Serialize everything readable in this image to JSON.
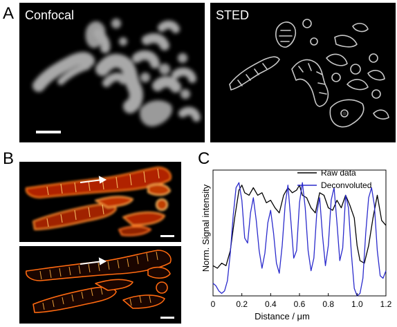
{
  "panels": {
    "a": {
      "letter": "A",
      "left_label": "Confocal",
      "right_label": "STED"
    },
    "b": {
      "letter": "B"
    },
    "c": {
      "letter": "C"
    }
  },
  "chart_data": {
    "type": "line",
    "xlabel": "Distance / μm",
    "ylabel": "Norm. Signal intensity",
    "xlim": [
      0,
      1.2
    ],
    "xticks": [
      "0",
      "0.2",
      "0.4",
      "0.6",
      "0.8",
      "1.0",
      "1.2"
    ],
    "ylim": [
      0,
      1
    ],
    "series": [
      {
        "name": "Raw data",
        "color": "#000000",
        "x": [
          0,
          0.03,
          0.06,
          0.09,
          0.12,
          0.15,
          0.18,
          0.2,
          0.22,
          0.25,
          0.28,
          0.31,
          0.34,
          0.37,
          0.4,
          0.43,
          0.46,
          0.49,
          0.52,
          0.55,
          0.58,
          0.6,
          0.62,
          0.65,
          0.68,
          0.71,
          0.74,
          0.77,
          0.8,
          0.83,
          0.86,
          0.89,
          0.92,
          0.95,
          0.98,
          1.0,
          1.02,
          1.05,
          1.08,
          1.11,
          1.14,
          1.17,
          1.2
        ],
        "y": [
          0.24,
          0.22,
          0.26,
          0.24,
          0.36,
          0.62,
          0.84,
          0.88,
          0.82,
          0.8,
          0.86,
          0.8,
          0.82,
          0.74,
          0.76,
          0.7,
          0.66,
          0.8,
          0.86,
          0.82,
          0.84,
          0.88,
          0.8,
          0.78,
          0.7,
          0.66,
          0.82,
          0.8,
          0.7,
          0.68,
          0.76,
          0.7,
          0.8,
          0.72,
          0.62,
          0.4,
          0.28,
          0.26,
          0.4,
          0.62,
          0.8,
          0.6,
          0.56
        ]
      },
      {
        "name": "Deconvoluted",
        "color": "#2a2acc",
        "x": [
          0,
          0.02,
          0.04,
          0.06,
          0.08,
          0.1,
          0.12,
          0.14,
          0.16,
          0.18,
          0.2,
          0.22,
          0.24,
          0.26,
          0.28,
          0.3,
          0.32,
          0.34,
          0.36,
          0.38,
          0.4,
          0.42,
          0.44,
          0.46,
          0.48,
          0.5,
          0.52,
          0.54,
          0.56,
          0.58,
          0.6,
          0.62,
          0.64,
          0.66,
          0.68,
          0.7,
          0.72,
          0.74,
          0.76,
          0.78,
          0.8,
          0.82,
          0.84,
          0.86,
          0.88,
          0.9,
          0.92,
          0.94,
          0.96,
          0.98,
          1.0,
          1.02,
          1.04,
          1.06,
          1.08,
          1.1,
          1.12,
          1.14,
          1.16,
          1.18,
          1.2
        ],
        "y": [
          0.1,
          0.08,
          0.04,
          0.02,
          0.04,
          0.12,
          0.34,
          0.64,
          0.86,
          0.9,
          0.76,
          0.46,
          0.42,
          0.66,
          0.78,
          0.6,
          0.36,
          0.22,
          0.34,
          0.58,
          0.68,
          0.5,
          0.26,
          0.18,
          0.4,
          0.72,
          0.88,
          0.6,
          0.3,
          0.36,
          0.74,
          0.9,
          0.7,
          0.36,
          0.2,
          0.3,
          0.66,
          0.78,
          0.48,
          0.24,
          0.4,
          0.76,
          0.86,
          0.58,
          0.28,
          0.38,
          0.8,
          0.7,
          0.34,
          0.06,
          0.0,
          0.02,
          0.14,
          0.5,
          0.78,
          0.86,
          0.72,
          0.36,
          0.16,
          0.14,
          0.2
        ]
      }
    ],
    "legend": "top-right",
    "grid": false
  }
}
